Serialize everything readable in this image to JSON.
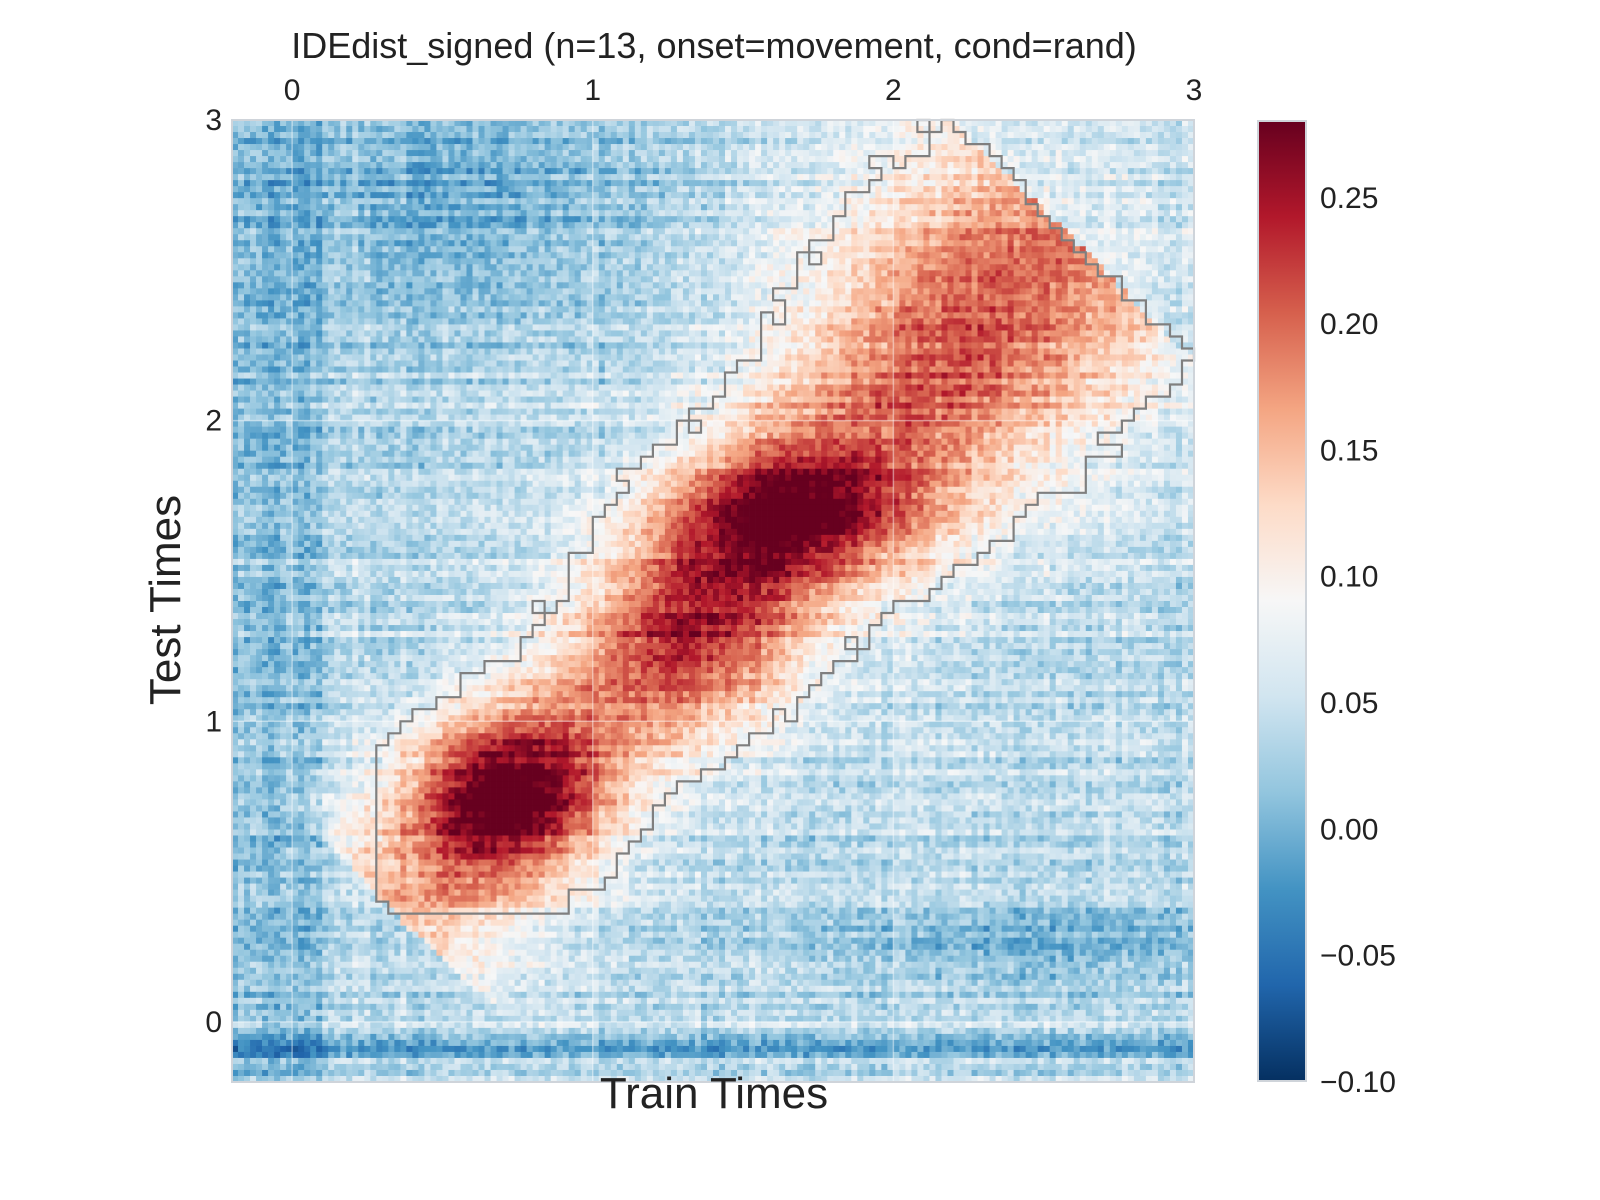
{
  "chart_data": {
    "type": "heatmap",
    "title": "IDEdist_signed (n=13, onset=movement, cond=rand)",
    "xlabel": "Train Times",
    "ylabel": "Test Times",
    "x_ticks": [
      0,
      1,
      2,
      3
    ],
    "y_ticks": [
      0,
      1,
      2,
      3
    ],
    "xlim": [
      -0.2,
      3.0
    ],
    "ylim": [
      -0.2,
      3.0
    ],
    "colorbar": {
      "min": -0.1,
      "max": 0.28,
      "ticks": [
        -0.1,
        -0.05,
        0.0,
        0.05,
        0.1,
        0.15,
        0.2,
        0.25
      ],
      "tick_labels": [
        "−0.10",
        "−0.05",
        "0.00",
        "0.05",
        "0.10",
        "0.15",
        "0.20",
        "0.25"
      ],
      "colormap": "RdBu_r",
      "colors": [
        "#053061",
        "#2166ac",
        "#4393c3",
        "#92c5de",
        "#d1e5f0",
        "#f7f7f7",
        "#fddbc7",
        "#f4a582",
        "#d6604d",
        "#b2182b",
        "#67001f"
      ]
    },
    "grid": true,
    "contour": "significance outline (gray)",
    "contour_color": "#7f7f7f",
    "peak": {
      "train": 0.7,
      "test": 0.75,
      "value": 0.27
    },
    "secondary_peak": {
      "train": 1.65,
      "test": 1.7,
      "value": 0.26
    }
  }
}
